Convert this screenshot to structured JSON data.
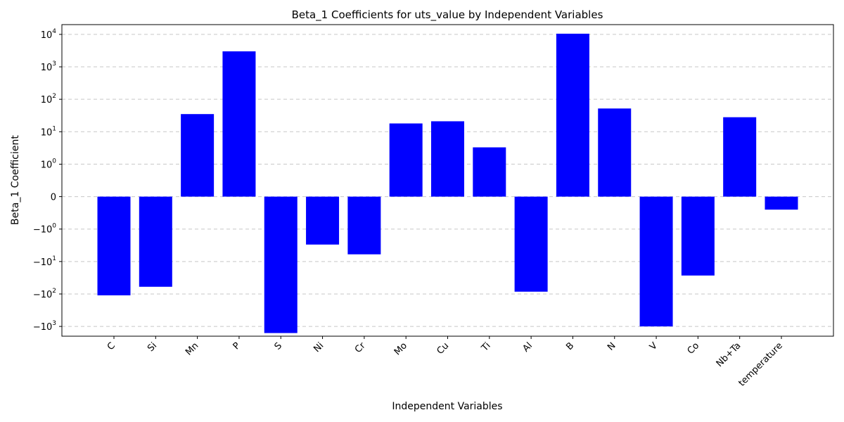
{
  "chart_data": {
    "type": "bar",
    "title": "Beta_1 Coefficients for uts_value by Independent Variables",
    "xlabel": "Independent Variables",
    "ylabel": "Beta_1 Coefficient",
    "yscale": "symlog",
    "linthresh": 1,
    "ylim": [
      -2000,
      20000
    ],
    "grid": "y-dashed",
    "bar_color": "#0000ff",
    "categories": [
      "C",
      "Si",
      "Mn",
      "P",
      "S",
      "Ni",
      "Cr",
      "Mo",
      "Cu",
      "Ti",
      "Al",
      "B",
      "N",
      "V",
      "Co",
      "Nb+Ta",
      "temperature"
    ],
    "values": [
      -110,
      -60,
      35,
      3000,
      -1600,
      -3.0,
      -6.0,
      18,
      21,
      3.3,
      -85,
      10500,
      52,
      -1000,
      -27,
      28,
      -0.4
    ],
    "yticks": [
      {
        "value": 10000,
        "base": "10",
        "exp": "4"
      },
      {
        "value": 1000,
        "base": "10",
        "exp": "3"
      },
      {
        "value": 100,
        "base": "10",
        "exp": "2"
      },
      {
        "value": 10,
        "base": "10",
        "exp": "1"
      },
      {
        "value": 1,
        "base": "10",
        "exp": "0"
      },
      {
        "value": 0,
        "base": "0",
        "exp": ""
      },
      {
        "value": -1,
        "base": "−10",
        "exp": "0"
      },
      {
        "value": -10,
        "base": "−10",
        "exp": "1"
      },
      {
        "value": -100,
        "base": "−10",
        "exp": "2"
      },
      {
        "value": -1000,
        "base": "−10",
        "exp": "3"
      }
    ]
  }
}
